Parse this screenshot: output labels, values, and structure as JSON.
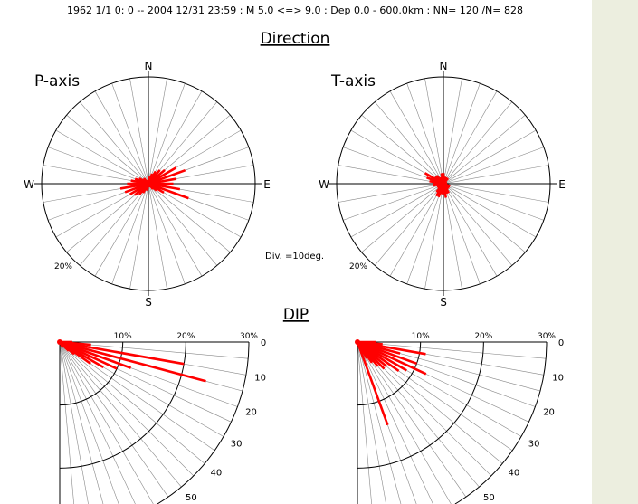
{
  "header": {
    "text": "1962 1/1  0: 0 -- 2004 12/31 23:59 :  M 5.0 <=> 9.0   :  Dep 0.0 - 600.0km :   NN= 120 /N= 828"
  },
  "sections": {
    "direction_title": "Direction",
    "dip_title": "DIP"
  },
  "division_note": "Div. =10deg.",
  "compass": {
    "n": "N",
    "e": "E",
    "s": "S",
    "w": "W"
  },
  "colors": {
    "rose": "#ff0000",
    "grid": "#888888",
    "frame": "#000000",
    "sidebar": "#ECEEDF"
  },
  "chart_data": [
    {
      "type": "polar-rose",
      "panel": "P-axis",
      "label": "P-axis",
      "bin_deg": 10,
      "radial_ticks": [
        "20%"
      ],
      "radial_max_pct": 30,
      "directions_deg": [
        0,
        10,
        20,
        30,
        40,
        50,
        60,
        70,
        80,
        90,
        100,
        110,
        120,
        130,
        140,
        150,
        160,
        170,
        180,
        190,
        200,
        210,
        220,
        230,
        240,
        250,
        260,
        270,
        280,
        290,
        300,
        310,
        320,
        330,
        340,
        350
      ],
      "values_pct": [
        1,
        2,
        3,
        4,
        5,
        6,
        9,
        11,
        8,
        7,
        9,
        12,
        5,
        3,
        2,
        1,
        1,
        1,
        1,
        2,
        2,
        3,
        4,
        5,
        6,
        7,
        8,
        6,
        5,
        4,
        3,
        2,
        2,
        1,
        1,
        1
      ]
    },
    {
      "type": "polar-rose",
      "panel": "T-axis",
      "label": "T-axis",
      "bin_deg": 10,
      "radial_ticks": [
        "20%"
      ],
      "radial_max_pct": 30,
      "directions_deg": [
        0,
        10,
        20,
        30,
        40,
        50,
        60,
        70,
        80,
        90,
        100,
        110,
        120,
        130,
        140,
        150,
        160,
        170,
        180,
        190,
        200,
        210,
        220,
        230,
        240,
        250,
        260,
        270,
        280,
        290,
        300,
        310,
        320,
        330,
        340,
        350
      ],
      "values_pct": [
        3,
        2,
        2,
        2,
        2,
        1,
        1,
        1,
        1,
        1,
        1,
        2,
        2,
        2,
        2,
        3,
        3,
        4,
        3,
        3,
        4,
        4,
        3,
        2,
        2,
        2,
        3,
        3,
        4,
        5,
        6,
        3,
        3,
        2,
        2,
        3
      ]
    },
    {
      "type": "polar-dip",
      "panel": "P-axis dip",
      "pct_ticks": [
        "10%",
        "20%",
        "30%"
      ],
      "dip_ticks": [
        "0",
        "10",
        "20",
        "30",
        "40",
        "50"
      ],
      "bin_deg": 5,
      "dips_deg": [
        0,
        5,
        10,
        15,
        20,
        25,
        30,
        35,
        40,
        45,
        50,
        55,
        60
      ],
      "values_pct": [
        2,
        5,
        20,
        24,
        12,
        10,
        8,
        6,
        3,
        2,
        1,
        1,
        1
      ]
    },
    {
      "type": "polar-dip",
      "panel": "T-axis dip",
      "pct_ticks": [
        "10%",
        "20%",
        "30%"
      ],
      "dip_ticks": [
        "0",
        "10",
        "20",
        "30",
        "40",
        "50"
      ],
      "bin_deg": 5,
      "dips_deg": [
        0,
        5,
        10,
        15,
        20,
        25,
        30,
        35,
        40,
        45,
        50,
        55,
        60,
        65,
        70
      ],
      "values_pct": [
        3,
        4,
        11,
        7,
        10,
        12,
        9,
        8,
        6,
        6,
        5,
        4,
        3,
        2,
        14
      ]
    }
  ]
}
